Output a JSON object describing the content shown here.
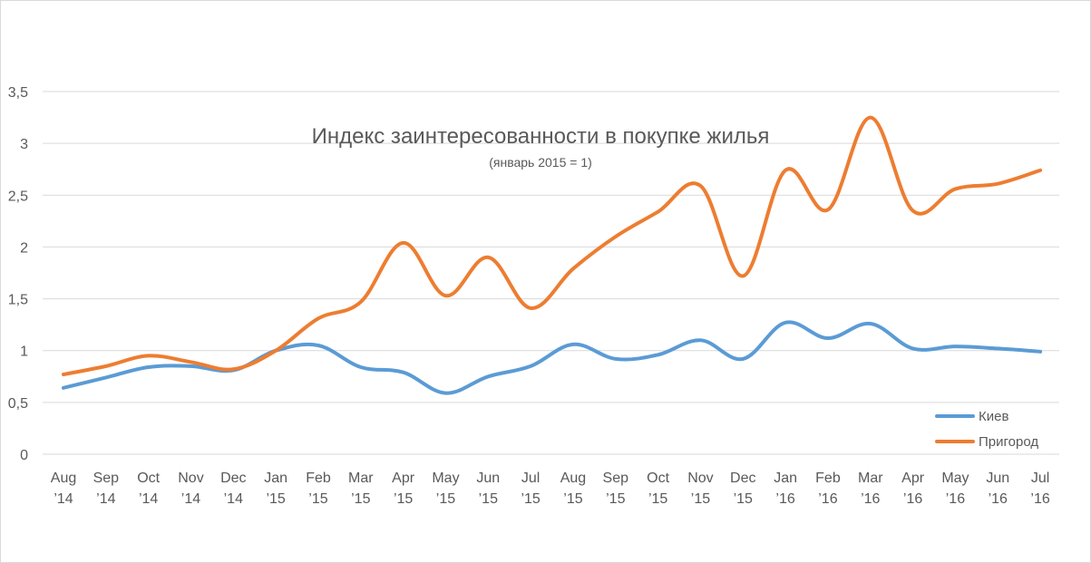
{
  "chart_data": {
    "type": "line",
    "title": "Индекс заинтересованности в покупке жилья",
    "subtitle": "(январь 2015 = 1)",
    "xlabel": "",
    "ylabel": "",
    "ylim": [
      0,
      3.5
    ],
    "yticks": [
      "0",
      "0,5",
      "1",
      "1,5",
      "2",
      "2,5",
      "3",
      "3,5"
    ],
    "grid": true,
    "legend_position": "bottom-right",
    "categories": [
      {
        "month": "Aug",
        "year": "’14"
      },
      {
        "month": "Sep",
        "year": "’14"
      },
      {
        "month": "Oct",
        "year": "’14"
      },
      {
        "month": "Nov",
        "year": "’14"
      },
      {
        "month": "Dec",
        "year": "’14"
      },
      {
        "month": "Jan",
        "year": "’15"
      },
      {
        "month": "Feb",
        "year": "’15"
      },
      {
        "month": "Mar",
        "year": "’15"
      },
      {
        "month": "Apr",
        "year": "’15"
      },
      {
        "month": "May",
        "year": "’15"
      },
      {
        "month": "Jun",
        "year": "’15"
      },
      {
        "month": "Jul",
        "year": "’15"
      },
      {
        "month": "Aug",
        "year": "’15"
      },
      {
        "month": "Sep",
        "year": "’15"
      },
      {
        "month": "Oct",
        "year": "’15"
      },
      {
        "month": "Nov",
        "year": "’15"
      },
      {
        "month": "Dec",
        "year": "’15"
      },
      {
        "month": "Jan",
        "year": "’16"
      },
      {
        "month": "Feb",
        "year": "’16"
      },
      {
        "month": "Mar",
        "year": "’16"
      },
      {
        "month": "Apr",
        "year": "’16"
      },
      {
        "month": "May",
        "year": "’16"
      },
      {
        "month": "Jun",
        "year": "’16"
      },
      {
        "month": "Jul",
        "year": "’16"
      }
    ],
    "series": [
      {
        "name": "Киев",
        "color": "#5B9BD5",
        "values": [
          0.64,
          0.74,
          0.84,
          0.85,
          0.81,
          1.0,
          1.05,
          0.84,
          0.79,
          0.59,
          0.75,
          0.85,
          1.06,
          0.92,
          0.96,
          1.1,
          0.92,
          1.27,
          1.12,
          1.26,
          1.02,
          1.04,
          1.02,
          0.99
        ]
      },
      {
        "name": "Пригород",
        "color": "#ED7D31",
        "values": [
          0.77,
          0.85,
          0.95,
          0.89,
          0.82,
          1.0,
          1.31,
          1.47,
          2.04,
          1.53,
          1.9,
          1.41,
          1.79,
          2.1,
          2.34,
          2.59,
          1.72,
          2.74,
          2.36,
          3.25,
          2.35,
          2.56,
          2.61,
          2.74
        ]
      }
    ]
  }
}
